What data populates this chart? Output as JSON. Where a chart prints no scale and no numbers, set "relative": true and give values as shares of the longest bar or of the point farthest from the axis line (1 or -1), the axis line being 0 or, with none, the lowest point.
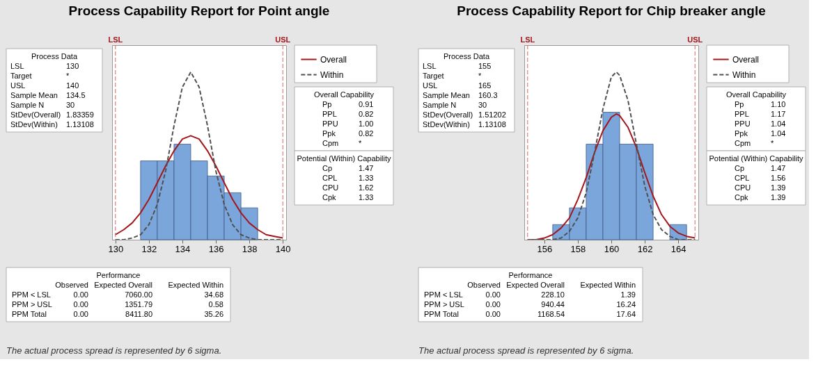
{
  "chart_data": [
    {
      "type": "histogram",
      "title": "Process Capability Report for Point angle",
      "relative": true,
      "color": "#7ba6dc",
      "bins": [
        131.5,
        132.5,
        133.5,
        134.5,
        135.5,
        136.5,
        137.5,
        138.5
      ],
      "values": [
        0.47,
        0.47,
        0.57,
        0.47,
        0.38,
        0.28,
        0.19
      ],
      "series": [
        {
          "name": "Overall",
          "type": "line",
          "color": "#a3161c",
          "line_style": "solid",
          "x": [
            130,
            130.5,
            131,
            131.5,
            132,
            132.5,
            133,
            133.5,
            134,
            134.5,
            135,
            135.5,
            136,
            136.5,
            137,
            137.5,
            138,
            138.5,
            139,
            139.5,
            140
          ],
          "values": [
            0.03,
            0.06,
            0.1,
            0.16,
            0.24,
            0.34,
            0.44,
            0.53,
            0.6,
            0.62,
            0.6,
            0.53,
            0.44,
            0.34,
            0.24,
            0.16,
            0.1,
            0.06,
            0.03,
            0.02,
            0.01
          ]
        },
        {
          "name": "Within",
          "type": "line",
          "color": "#505050",
          "line_style": "dashed",
          "x": [
            130,
            130.5,
            131,
            131.5,
            132,
            132.5,
            133,
            133.5,
            134,
            134.5,
            135,
            135.5,
            136,
            136.5,
            137,
            137.5,
            138,
            138.5,
            139,
            139.5,
            140
          ],
          "values": [
            0,
            0,
            0.01,
            0.03,
            0.09,
            0.21,
            0.41,
            0.68,
            0.91,
            1,
            0.91,
            0.68,
            0.41,
            0.21,
            0.09,
            0.03,
            0.01,
            0,
            0,
            0,
            0
          ]
        }
      ],
      "xlim": [
        129.8,
        140.2
      ],
      "xticks": [
        130,
        132,
        134,
        136,
        138,
        140
      ],
      "ref_lines": [
        {
          "axis": "x",
          "value": 130,
          "label": "LSL",
          "color": "#e06060",
          "line_style": "dashed"
        },
        {
          "axis": "x",
          "value": 140,
          "label": "USL",
          "color": "#e06060",
          "line_style": "dashed"
        }
      ],
      "legend": "right",
      "annotations": [
        "Process Data\nLSL\t130\nTarget\t*\nUSL\t140\nSample Mean\t134.5\nSample N\t30\nStDev(Overall)\t1.83359\nStDev(Within)\t1.13108",
        "Overall Capability\nPp\t0.91\nPPL\t0.82\nPPU\t1.00\nPpk\t0.82\nCpm\t*",
        "Potential (Within) Capability\nCp\t1.47\nCPL\t1.33\nCPU\t1.62\nCpk\t1.33",
        "Performance\n\tObserved\tExpected Overall\tExpected Within\nPPM < LSL\t0.00\t7060.00\t34.68\nPPM > USL\t0.00\t1351.79\t0.58\nPPM Total\t0.00\t8411.80\t35.26",
        "The actual process spread is represented by 6 sigma."
      ]
    },
    {
      "type": "histogram",
      "title": "Process Capability Report for Chip breaker angle",
      "relative": true,
      "color": "#7ba6dc",
      "bins": [
        156.5,
        157.5,
        158.5,
        159.5,
        160.5,
        161.5,
        162.5,
        163.5,
        164.5
      ],
      "values": [
        0.09,
        0.19,
        0.57,
        0.76,
        0.57,
        0.57,
        0,
        0.09
      ],
      "series": [
        {
          "name": "Overall",
          "type": "line",
          "color": "#a3161c",
          "line_style": "solid",
          "x": [
            155,
            155.5,
            156,
            156.5,
            157,
            157.5,
            158,
            158.5,
            159,
            159.5,
            160,
            160.3,
            160.5,
            161,
            161.5,
            162,
            162.5,
            163,
            163.5,
            164,
            164.5,
            165
          ],
          "values": [
            0,
            0,
            0.01,
            0.03,
            0.07,
            0.13,
            0.24,
            0.37,
            0.52,
            0.65,
            0.73,
            0.75,
            0.74,
            0.67,
            0.55,
            0.4,
            0.26,
            0.15,
            0.08,
            0.04,
            0.02,
            0.01
          ]
        },
        {
          "name": "Within",
          "type": "line",
          "color": "#505050",
          "line_style": "dashed",
          "x": [
            155,
            155.5,
            156,
            156.5,
            157,
            157.5,
            158,
            158.5,
            159,
            159.5,
            160,
            160.3,
            160.5,
            161,
            161.5,
            162,
            162.5,
            163,
            163.5,
            164,
            164.5,
            165
          ],
          "values": [
            0,
            0,
            0,
            0,
            0.01,
            0.05,
            0.13,
            0.28,
            0.52,
            0.78,
            0.97,
            1,
            0.98,
            0.83,
            0.57,
            0.32,
            0.15,
            0.06,
            0.02,
            0,
            0,
            0
          ]
        }
      ],
      "xlim": [
        154.8,
        165.2
      ],
      "xticks": [
        156,
        158,
        160,
        162,
        164
      ],
      "ref_lines": [
        {
          "axis": "x",
          "value": 155,
          "label": "LSL",
          "color": "#e06060",
          "line_style": "dashed"
        },
        {
          "axis": "x",
          "value": 165,
          "label": "USL",
          "color": "#e06060",
          "line_style": "dashed"
        }
      ],
      "legend": "right",
      "annotations": [
        "Process Data\nLSL\t155\nTarget\t*\nUSL\t165\nSample Mean\t160.3\nSample N\t30\nStDev(Overall)\t1.51202\nStDev(Within)\t1.13108",
        "Overall Capability\nPp\t1.10\nPPL\t1.17\nPPU\t1.04\nPpk\t1.04\nCpm\t*",
        "Potential (Within) Capability\nCp\t1.47\nCPL\t1.56\nCPU\t1.39\nCpk\t1.39",
        "Performance\n\tObserved\tExpected Overall\tExpected Within\nPPM < LSL\t0.00\t228.10\t1.39\nPPM > USL\t0.00\t940.44\t16.24\nPPM Total\t0.00\t1168.54\t17.64",
        "The actual process spread is represented by 6 sigma."
      ]
    }
  ]
}
